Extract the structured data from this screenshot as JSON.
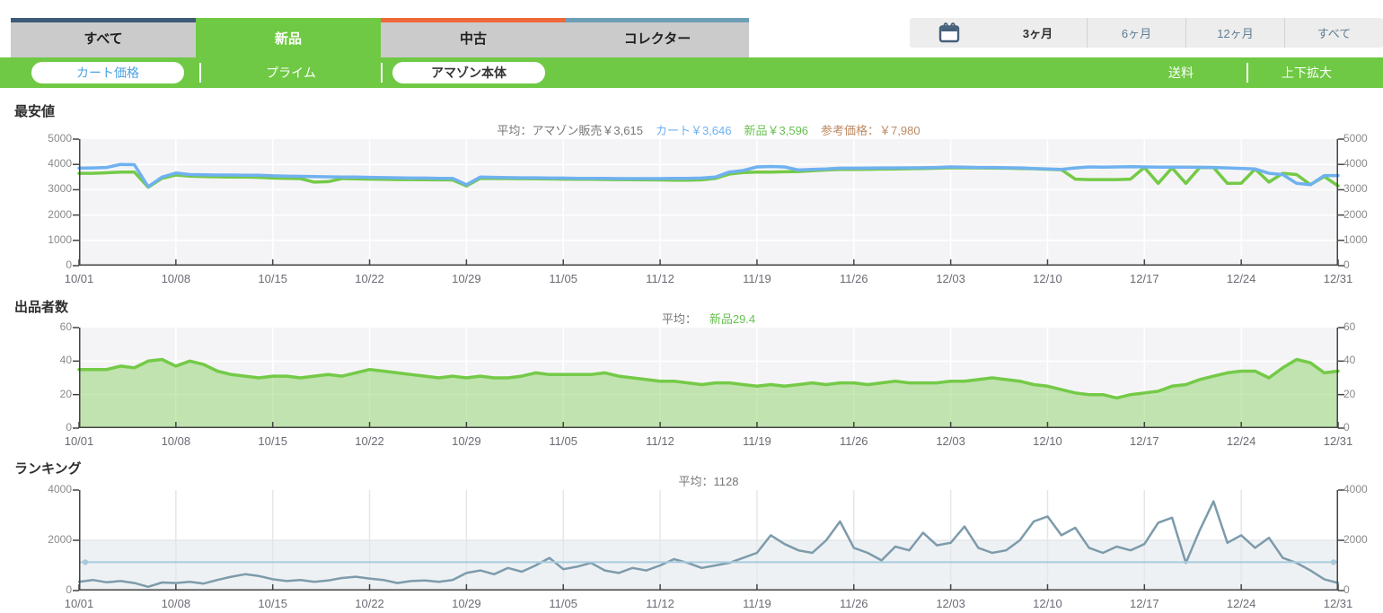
{
  "tabs": {
    "items": [
      {
        "label": "すべて",
        "accent": "#3d5a76",
        "active": false
      },
      {
        "label": "新品",
        "accent": "#6fc944",
        "active": true
      },
      {
        "label": "中古",
        "accent": "#f0683a",
        "active": false
      },
      {
        "label": "コレクター",
        "accent": "#6e9fb6",
        "active": false
      }
    ]
  },
  "time_range": {
    "options": [
      {
        "label": "3ヶ月",
        "active": true
      },
      {
        "label": "6ヶ月",
        "active": false
      },
      {
        "label": "12ヶ月",
        "active": false
      },
      {
        "label": "すべて",
        "active": false
      }
    ],
    "icon": "calendar-icon",
    "icon_color": "#44607a"
  },
  "filter_bar": {
    "bg": "#6fc944",
    "cart_price": "カート価格",
    "prime": "プライム",
    "amazon": "アマゾン本体",
    "shipping": "送料",
    "expand": "上下拡大"
  },
  "chart_data": [
    {
      "type": "line",
      "title": "最安値",
      "average_parts": [
        {
          "text": "平均：アマゾン販売￥3,615",
          "color": "#777777"
        },
        {
          "text": "カート￥3,646",
          "color": "#6fb1f0"
        },
        {
          "text": "新品￥3,596",
          "color": "#67c14f"
        },
        {
          "text": "参考価格：￥7,980",
          "color": "#bd8a64"
        }
      ],
      "x_labels": [
        "10/01",
        "10/08",
        "10/15",
        "10/22",
        "10/29",
        "11/05",
        "11/12",
        "11/19",
        "11/26",
        "12/03",
        "12/10",
        "12/17",
        "12/24",
        "12/31"
      ],
      "tick_every_days": 7,
      "ylim": [
        0,
        5000
      ],
      "yticks": [
        0,
        1000,
        2000,
        3000,
        4000,
        5000
      ],
      "plot_bg": "#f4f4f6",
      "grid_color": "#ffffff",
      "axis_color": "#444444",
      "series": [
        {
          "name": "新品",
          "color": "#74ca47",
          "width": 3.5,
          "values": [
            3650,
            3650,
            3670,
            3700,
            3700,
            3100,
            3450,
            3580,
            3540,
            3520,
            3510,
            3500,
            3500,
            3490,
            3460,
            3450,
            3440,
            3300,
            3320,
            3440,
            3430,
            3420,
            3410,
            3400,
            3400,
            3395,
            3390,
            3385,
            3150,
            3450,
            3445,
            3440,
            3435,
            3430,
            3425,
            3420,
            3415,
            3410,
            3405,
            3400,
            3395,
            3390,
            3385,
            3380,
            3380,
            3390,
            3450,
            3620,
            3680,
            3700,
            3700,
            3710,
            3720,
            3750,
            3780,
            3800,
            3805,
            3810,
            3815,
            3820,
            3830,
            3840,
            3850,
            3870,
            3865,
            3860,
            3855,
            3850,
            3840,
            3830,
            3810,
            3790,
            3420,
            3400,
            3400,
            3400,
            3420,
            3880,
            3250,
            3860,
            3250,
            3880,
            3875,
            3250,
            3260,
            3820,
            3300,
            3650,
            3600,
            3200,
            3520,
            3150
          ]
        },
        {
          "name": "カート",
          "color": "#6fb1f0",
          "width": 3.5,
          "values": [
            3850,
            3860,
            3880,
            4000,
            3990,
            3120,
            3500,
            3660,
            3600,
            3590,
            3580,
            3580,
            3570,
            3570,
            3550,
            3540,
            3530,
            3520,
            3510,
            3500,
            3500,
            3490,
            3480,
            3470,
            3460,
            3460,
            3450,
            3450,
            3200,
            3500,
            3490,
            3480,
            3470,
            3470,
            3460,
            3460,
            3450,
            3450,
            3450,
            3440,
            3440,
            3440,
            3440,
            3450,
            3450,
            3460,
            3500,
            3700,
            3760,
            3900,
            3920,
            3900,
            3780,
            3800,
            3820,
            3850,
            3850,
            3855,
            3860,
            3860,
            3865,
            3870,
            3880,
            3900,
            3890,
            3880,
            3880,
            3870,
            3860,
            3840,
            3820,
            3800,
            3860,
            3900,
            3890,
            3900,
            3910,
            3900,
            3890,
            3895,
            3890,
            3885,
            3880,
            3860,
            3845,
            3820,
            3650,
            3600,
            3250,
            3200,
            3560,
            3560
          ]
        }
      ]
    },
    {
      "type": "area",
      "title": "出品者数",
      "average_parts": [
        {
          "text": "平均：",
          "color": "#777777"
        },
        {
          "text": "新品29.4",
          "color": "#67c14f"
        }
      ],
      "x_labels": [
        "10/01",
        "10/08",
        "10/15",
        "10/22",
        "10/29",
        "11/05",
        "11/12",
        "11/19",
        "11/26",
        "12/03",
        "12/10",
        "12/17",
        "12/24",
        "12/31"
      ],
      "tick_every_days": 7,
      "ylim": [
        0,
        60
      ],
      "yticks": [
        0,
        20,
        40,
        60
      ],
      "plot_bg": "#f4f4f6",
      "grid_color": "#ffffff",
      "axis_color": "#444444",
      "series": [
        {
          "name": "新品",
          "color": "#74ca47",
          "width": 3.5,
          "fill": "rgba(116,202,71,0.40)",
          "values": [
            35,
            35,
            35,
            37,
            36,
            40,
            41,
            37,
            40,
            38,
            34,
            32,
            31,
            30,
            31,
            31,
            30,
            31,
            32,
            31,
            33,
            35,
            34,
            33,
            32,
            31,
            30,
            31,
            30,
            31,
            30,
            30,
            31,
            33,
            32,
            32,
            32,
            32,
            33,
            31,
            30,
            29,
            28,
            28,
            27,
            26,
            27,
            27,
            26,
            25,
            26,
            25,
            26,
            27,
            26,
            27,
            27,
            26,
            27,
            28,
            27,
            27,
            27,
            28,
            28,
            29,
            30,
            29,
            28,
            26,
            25,
            23,
            21,
            20,
            20,
            18,
            20,
            21,
            22,
            25,
            26,
            29,
            31,
            33,
            34,
            34,
            30,
            36,
            41,
            39,
            33,
            34
          ]
        }
      ]
    },
    {
      "type": "line",
      "title": "ランキング",
      "average_parts": [
        {
          "text": "平均：1128",
          "color": "#777777"
        }
      ],
      "x_labels": [
        "10/01",
        "10/08",
        "10/15",
        "10/22",
        "10/29",
        "11/05",
        "11/12",
        "11/19",
        "11/26",
        "12/03",
        "12/10",
        "12/17",
        "12/24",
        "12/31"
      ],
      "tick_every_days": 7,
      "ylim": [
        0,
        4000
      ],
      "yticks": [
        0,
        2000,
        4000
      ],
      "plot_bg": "#ffffff",
      "band": {
        "from": 0,
        "to": 2000,
        "color": "#eef1f4"
      },
      "grid_color": "#e4e7ea",
      "axis_color": "#444444",
      "avg_line": {
        "value": 1128,
        "color": "#a9cbdc"
      },
      "series": [
        {
          "name": "ランキング",
          "color": "#7d9bab",
          "width": 2.5,
          "values": [
            350,
            420,
            330,
            380,
            300,
            150,
            320,
            300,
            350,
            280,
            420,
            550,
            650,
            580,
            450,
            380,
            420,
            350,
            400,
            500,
            550,
            480,
            420,
            300,
            380,
            400,
            350,
            420,
            700,
            800,
            650,
            900,
            750,
            1000,
            1300,
            850,
            950,
            1100,
            800,
            700,
            900,
            800,
            1000,
            1250,
            1100,
            900,
            1000,
            1100,
            1300,
            1500,
            2200,
            1850,
            1600,
            1500,
            2000,
            2750,
            1700,
            1500,
            1200,
            1750,
            1600,
            2300,
            1800,
            1900,
            2550,
            1700,
            1500,
            1600,
            2000,
            2750,
            2950,
            2200,
            2500,
            1700,
            1500,
            1750,
            1600,
            1850,
            2700,
            2900,
            1100,
            2400,
            3550,
            1900,
            2200,
            1700,
            2100,
            1300,
            1100,
            800,
            450,
            300
          ]
        }
      ]
    }
  ]
}
